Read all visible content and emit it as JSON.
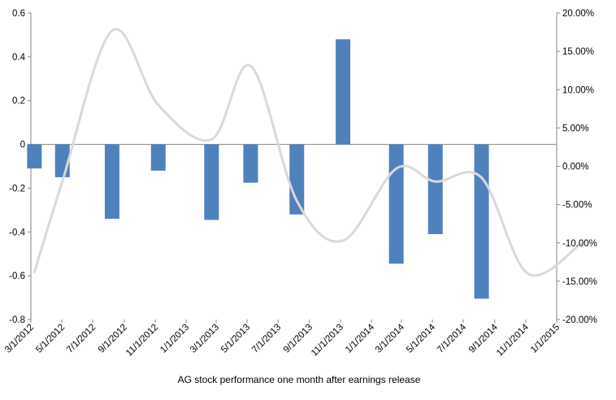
{
  "chart_data": {
    "type": "bar",
    "title": "",
    "xlabel": "AG stock performance one month after earnings release",
    "ylabel": "",
    "x_tick_labels": [
      "3/1/2012",
      "5/1/2012",
      "7/1/2012",
      "9/1/2012",
      "11/1/2012",
      "1/1/2013",
      "3/1/2013",
      "5/1/2013",
      "7/1/2013",
      "9/1/2013",
      "11/1/2013",
      "1/1/2014",
      "3/1/2014",
      "5/1/2014",
      "7/1/2014",
      "9/1/2014",
      "11/1/2014",
      "1/1/2015"
    ],
    "y_left": {
      "ylim": [
        -0.8,
        0.6
      ],
      "ticks": [
        "0.6",
        "0.4",
        "0.2",
        "0",
        "-0.2",
        "-0.4",
        "-0.6",
        "-0.8"
      ]
    },
    "y_right": {
      "ylim": [
        -0.2,
        0.2
      ],
      "ticks": [
        "20.00%",
        "15.00%",
        "10.00%",
        "5.00%",
        "0.00%",
        "-5.00%",
        "-10.00%",
        "-15.00%",
        "-20.00%"
      ]
    },
    "series": [
      {
        "type": "bar",
        "axis": "left",
        "color": "#4f81bd",
        "points": [
          {
            "x": "3/8/2012",
            "y": -0.11
          },
          {
            "x": "5/2/2012",
            "y": -0.15
          },
          {
            "x": "8/8/2012",
            "y": -0.34
          },
          {
            "x": "11/7/2012",
            "y": -0.12
          },
          {
            "x": "2/20/2013",
            "y": -0.345
          },
          {
            "x": "5/8/2013",
            "y": -0.175
          },
          {
            "x": "8/7/2013",
            "y": -0.32
          },
          {
            "x": "11/6/2013",
            "y": 0.48
          },
          {
            "x": "2/19/2014",
            "y": -0.545
          },
          {
            "x": "5/7/2014",
            "y": -0.41
          },
          {
            "x": "8/6/2014",
            "y": -0.705
          }
        ]
      },
      {
        "type": "line",
        "axis": "right",
        "color": "#d9d9d9",
        "smooth": true,
        "points": [
          {
            "x": "3/8/2012",
            "y": -0.138
          },
          {
            "x": "5/2/2012",
            "y": -0.02
          },
          {
            "x": "8/8/2012",
            "y": 0.177
          },
          {
            "x": "11/7/2012",
            "y": 0.08
          },
          {
            "x": "2/20/2013",
            "y": 0.035
          },
          {
            "x": "5/8/2013",
            "y": 0.131
          },
          {
            "x": "8/7/2013",
            "y": -0.045
          },
          {
            "x": "11/6/2013",
            "y": -0.097
          },
          {
            "x": "2/19/2014",
            "y": -0.003
          },
          {
            "x": "5/7/2014",
            "y": -0.02
          },
          {
            "x": "8/6/2014",
            "y": -0.015
          },
          {
            "x": "11/5/2014",
            "y": -0.14
          },
          {
            "x": "2/18/2015",
            "y": -0.101
          }
        ]
      }
    ],
    "grid": false,
    "legend": "none"
  }
}
